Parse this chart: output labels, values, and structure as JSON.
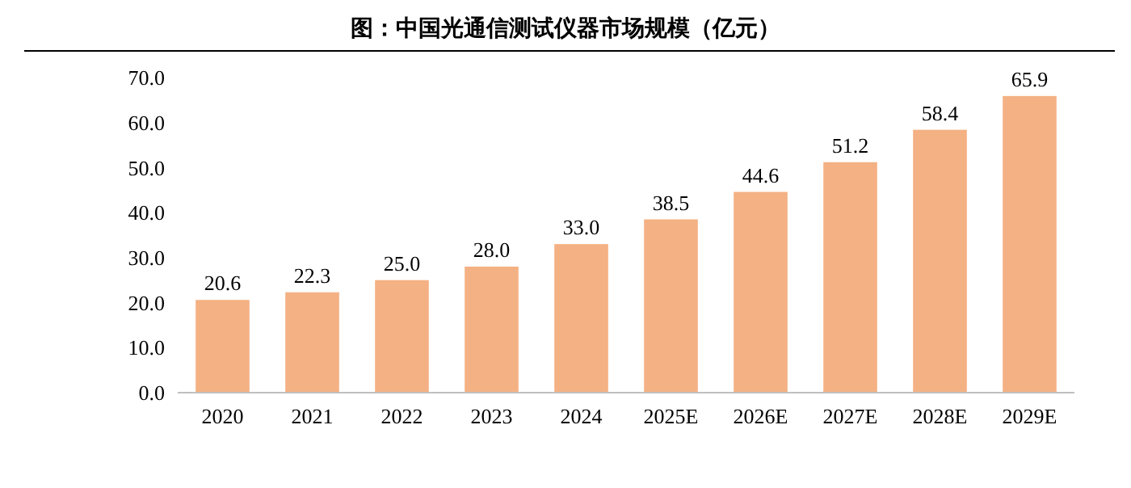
{
  "chart_data": {
    "type": "bar",
    "title": "图：中国光通信测试仪器市场规模（亿元）",
    "categories": [
      "2020",
      "2021",
      "2022",
      "2023",
      "2024",
      "2025E",
      "2026E",
      "2027E",
      "2028E",
      "2029E"
    ],
    "values": [
      20.6,
      22.3,
      25.0,
      28.0,
      33.0,
      38.5,
      44.6,
      51.2,
      58.4,
      65.9
    ],
    "value_labels": [
      "20.6",
      "22.3",
      "25.0",
      "28.0",
      "33.0",
      "38.5",
      "44.6",
      "51.2",
      "58.4",
      "65.9"
    ],
    "color": "#f4b183",
    "ylim": [
      0,
      70
    ],
    "yticks": [
      {
        "value": 0,
        "label": "0.0"
      },
      {
        "value": 10,
        "label": "10.0"
      },
      {
        "value": 20,
        "label": "20.0"
      },
      {
        "value": 30,
        "label": "30.0"
      },
      {
        "value": 40,
        "label": "40.0"
      },
      {
        "value": 50,
        "label": "50.0"
      },
      {
        "value": 60,
        "label": "60.0"
      },
      {
        "value": 70,
        "label": "70.0"
      }
    ],
    "grid": false
  }
}
